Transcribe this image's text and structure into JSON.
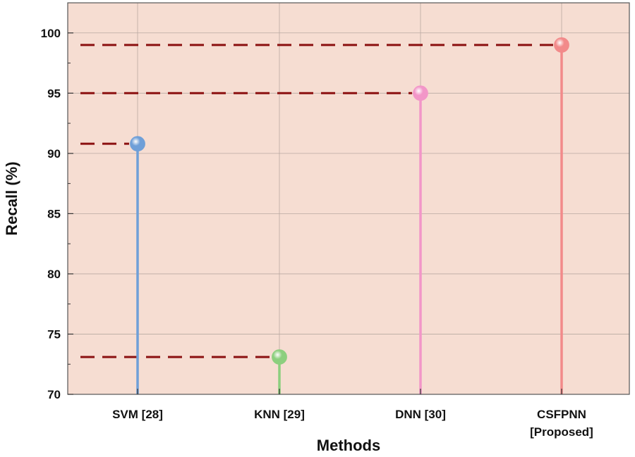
{
  "chart_data": {
    "type": "lollipop",
    "title": "",
    "xlabel": "Methods",
    "ylabel": "Recall (%)",
    "ylim": [
      70,
      102.5
    ],
    "yticks": [
      70,
      75,
      80,
      85,
      90,
      95,
      100
    ],
    "grid": true,
    "legend": "none",
    "categories": [
      {
        "lines": [
          "SVM [28]"
        ]
      },
      {
        "lines": [
          "KNN [29]"
        ]
      },
      {
        "lines": [
          "DNN [30]"
        ]
      },
      {
        "lines": [
          "CSFPNN",
          "[Proposed]"
        ]
      }
    ],
    "values": [
      90.8,
      73.1,
      95.0,
      99.0
    ],
    "colors": [
      "#6f9fd8",
      "#8ccf7e",
      "#f296c8",
      "#f28a8a"
    ],
    "reference_line_color": "#8b1010",
    "plot_background": "#f6ddd2"
  }
}
